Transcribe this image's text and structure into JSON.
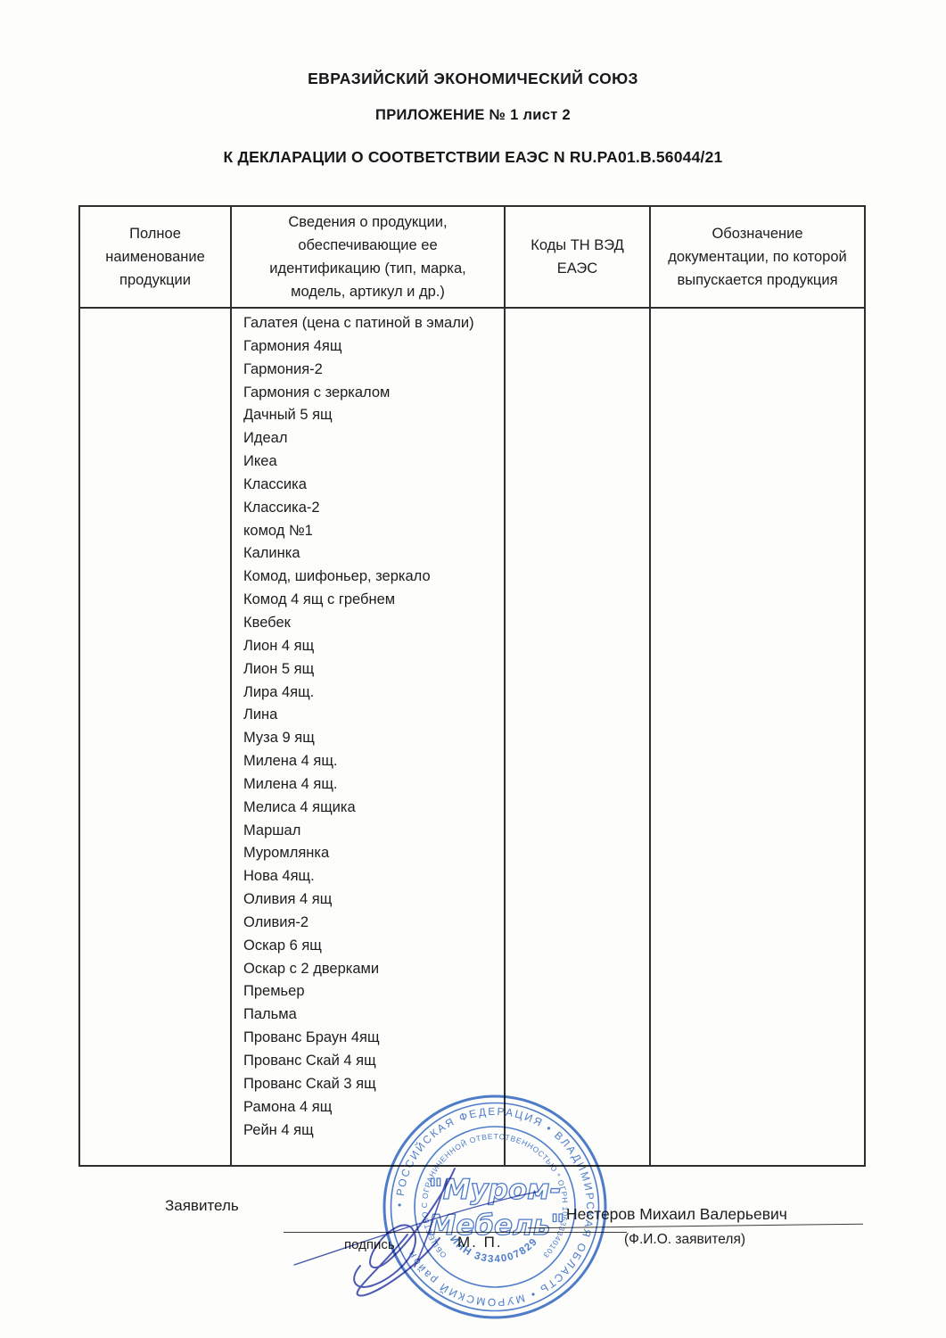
{
  "titles": {
    "line1": "ЕВРАЗИЙСКИЙ ЭКОНОМИЧЕСКИЙ СОЮЗ",
    "line2": "ПРИЛОЖЕНИЕ № 1 лист 2",
    "line3": "К ДЕКЛАРАЦИИ О СООТВЕТСТВИИ ЕАЭС N RU.PA01.B.56044/21"
  },
  "table": {
    "headers": [
      "Полное наименование продукции",
      "Сведения о продукции, обеспечивающие ее идентификацию (тип, марка, модель, артикул и др.)",
      "Коды ТН ВЭД ЕАЭС",
      "Обозначение документации, по которой выпускается продукция"
    ],
    "products": [
      "Галатея (цена с патиной в эмали)",
      "Гармония 4ящ",
      "Гармония-2",
      "Гармония с зеркалом",
      "Дачный 5 ящ",
      "Идеал",
      "Икеа",
      "Классика",
      "Классика-2",
      "комод №1",
      "Калинка",
      "Комод, шифоньер, зеркало",
      "Комод 4 ящ с гребнем",
      "Квебек",
      "Лион 4 ящ",
      "Лион 5 ящ",
      "Лира 4ящ.",
      "Лина",
      "Муза 9 ящ",
      "Милена 4 ящ.",
      "Милена 4 ящ.",
      "Мелиса 4 ящика",
      "Маршал",
      "Муромлянка",
      "Нова 4ящ.",
      "Оливия 4 ящ",
      "Оливия-2",
      "Оскар 6 ящ",
      "Оскар с 2 дверками",
      "Премьер",
      "Пальма",
      "Прованс Браун 4ящ",
      "Прованс Скай 4 ящ",
      "Прованс Скай 3 ящ",
      "Рамона  4 ящ",
      "Рейн 4 ящ"
    ]
  },
  "footer": {
    "applicant_label": "Заявитель",
    "signature_caption": "подпись",
    "stamp_place": "М. П.",
    "applicant_name": "Нестеров Михаил Валерьевич",
    "name_caption": "(Ф.И.О. заявителя)"
  },
  "stamp": {
    "outer_ring": "• РОССИЙСКАЯ ФЕДЕРАЦИЯ • ВЛАДИМИРСКАЯ ОБЛАСТЬ • МУРОМСКИЙ район ",
    "inner_ring": "ОБЩЕСТВО С ОГРАНИЧЕННОЙ ОТВЕТСТВЕННОСТЬЮ * ОГРН 1063334010343",
    "inn": "ИНН 3334007829",
    "center_line1": "\"Муром-",
    "center_line2": "Мебель\"",
    "color": "#3f72c8"
  }
}
